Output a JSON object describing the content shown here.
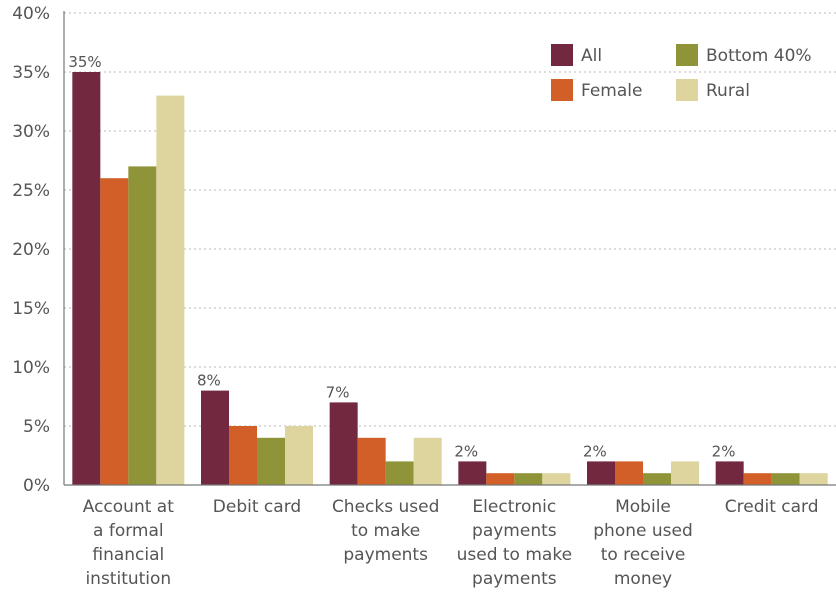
{
  "chart_data": {
    "type": "bar",
    "categories": [
      [
        "Account at",
        "a formal",
        "financial",
        "institution"
      ],
      [
        "Debit card"
      ],
      [
        "Checks used",
        "to make",
        "payments"
      ],
      [
        "Electronic",
        "payments",
        "used to make",
        "payments"
      ],
      [
        "Mobile",
        "phone used",
        "to receive",
        "money"
      ],
      [
        "Credit card"
      ]
    ],
    "series": [
      {
        "name": "All",
        "color": "#722940",
        "values": [
          35,
          8,
          7,
          2,
          2,
          2
        ]
      },
      {
        "name": "Female",
        "color": "#d25f27",
        "values": [
          26,
          5,
          4,
          1,
          2,
          1
        ]
      },
      {
        "name": "Bottom 40%",
        "color": "#8f9438",
        "values": [
          27,
          4,
          2,
          1,
          1,
          1
        ]
      },
      {
        "name": "Rural",
        "color": "#ddd49e",
        "values": [
          33,
          5,
          4,
          1,
          2,
          1
        ]
      }
    ],
    "data_labels": {
      "series": "All",
      "values": [
        "35%",
        "8%",
        "7%",
        "2%",
        "2%",
        "2%"
      ]
    },
    "yticks": [
      "0%",
      "5%",
      "10%",
      "15%",
      "20%",
      "25%",
      "30%",
      "35%",
      "40%"
    ],
    "ylim": [
      0,
      40
    ],
    "grid": true,
    "legend_position": "top-right",
    "title": "",
    "xlabel": "",
    "ylabel": ""
  }
}
